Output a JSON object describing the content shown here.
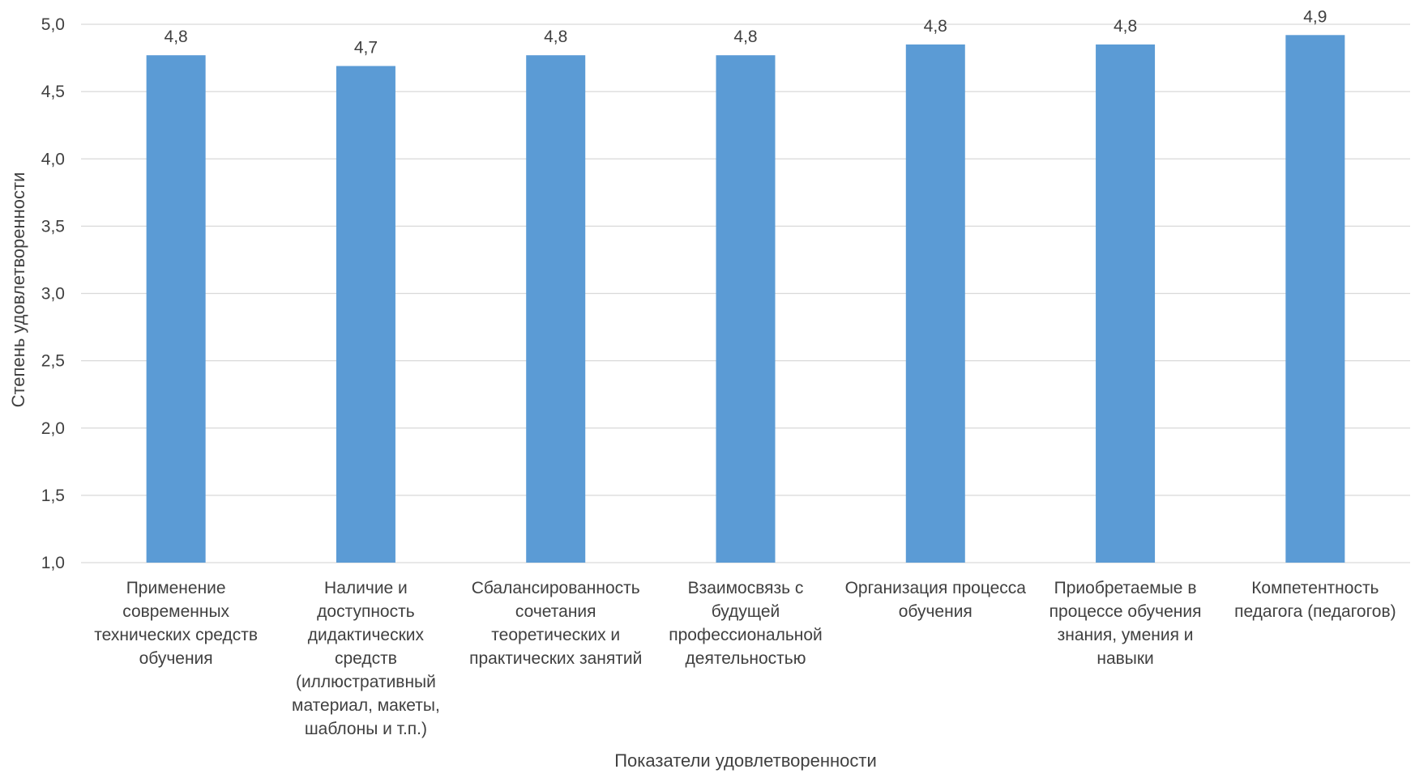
{
  "chart_data": {
    "type": "bar",
    "title": "",
    "xlabel": "Показатели удовлетворенности",
    "ylabel": "Степень удовлетворенности",
    "ylim": [
      1.0,
      5.0
    ],
    "yticks": [
      "1,0",
      "1,5",
      "2,0",
      "2,5",
      "3,0",
      "3,5",
      "4,0",
      "4,5",
      "5,0"
    ],
    "ytick_values": [
      1.0,
      1.5,
      2.0,
      2.5,
      3.0,
      3.5,
      4.0,
      4.5,
      5.0
    ],
    "grid": true,
    "legend": "none",
    "bar_color": "#5b9bd5",
    "categories": [
      [
        "Применение",
        "современных",
        "технических средств",
        "обучения"
      ],
      [
        "Наличие и",
        "доступность",
        "дидактических",
        "средств",
        "(иллюстративный",
        "материал, макеты,",
        "шаблоны и т.п.)"
      ],
      [
        "Сбалансированность",
        "сочетания",
        "теоретических и",
        "практических занятий"
      ],
      [
        "Взаимосвязь с",
        "будущей",
        "профессиональной",
        "деятельностью"
      ],
      [
        "Организация процесса",
        "обучения"
      ],
      [
        "Приобретаемые в",
        "процессе обучения",
        "знания, умения и",
        "навыки"
      ],
      [
        "Компетентность",
        "педагога (педагогов)"
      ]
    ],
    "values": [
      4.77,
      4.69,
      4.77,
      4.77,
      4.85,
      4.85,
      4.92
    ],
    "data_labels": [
      "4,8",
      "4,7",
      "4,8",
      "4,8",
      "4,8",
      "4,8",
      "4,9"
    ]
  }
}
